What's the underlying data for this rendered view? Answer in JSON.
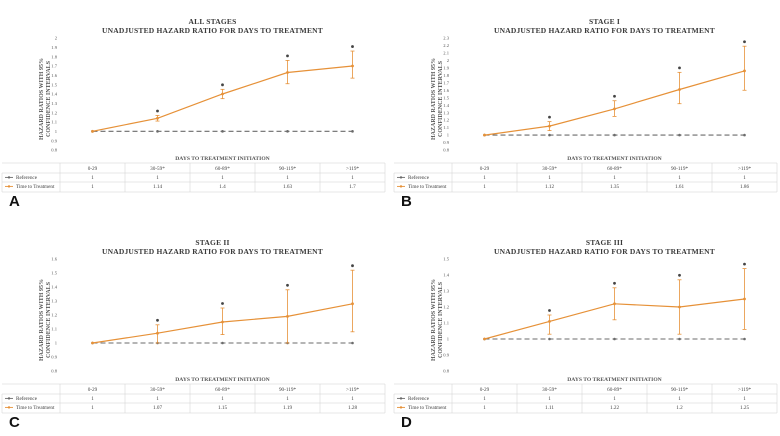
{
  "panels": [
    {
      "letter": "A",
      "title_line1": "ALL STAGES",
      "title_line2": "UNADJUSTED HAZARD RATIO FOR DAYS TO TREATMENT",
      "ylabel": "HAZARD RATIOS WITH 95% CONFIDENCE INTERVALS",
      "xlabel": "DAYS TO TREATMENT INITIATION"
    },
    {
      "letter": "B",
      "title_line1": "STAGE I",
      "title_line2": "UNADJUSTED HAZARD RATIO FOR DAYS TO TREATMENT",
      "ylabel": "HAZARD RATIOS WITH 95% CONFIDENCE INTERVALS",
      "xlabel": "DAYS TO TREATMENT INITIATION"
    },
    {
      "letter": "C",
      "title_line1": "STAGE II",
      "title_line2": "UNADJUSTED HAZARD RATIO FOR DAYS TO TREATMENT",
      "ylabel": "HAZARD RATIOS WITH 95% CONFIDENCE INTERVALS",
      "xlabel": "DAYS TO TREATMENT INITIATION"
    },
    {
      "letter": "D",
      "title_line1": "STAGE III",
      "title_line2": "UNADJUSTED HAZARD RATIO FOR DAYS TO TREATMENT",
      "ylabel": "HAZARD RATIOS WITH 95% CONFIDENCE INTERVALS",
      "xlabel": "DAYS TO TREATMENT INITIATION"
    }
  ],
  "colors": {
    "reference": "#6b6b6b",
    "time": "#e69138",
    "star": "#444444"
  },
  "chart_data": [
    {
      "type": "line",
      "title": "ALL STAGES UNADJUSTED HAZARD RATIO FOR DAYS TO TREATMENT",
      "xlabel": "DAYS TO TREATMENT INITIATION",
      "ylabel": "HAZARD RATIOS WITH 95% CONFIDENCE INTERVALS",
      "categories": [
        "0-29",
        "30-59*",
        "60-89*",
        "90-119*",
        ">119*"
      ],
      "ylim": [
        0.8,
        2
      ],
      "yticks": [
        "0.8",
        "0.9",
        "1",
        "1.1",
        "1.2",
        "1.3",
        "1.4",
        "1.5",
        "1.6",
        "1.7",
        "1.8",
        "1.9",
        "2"
      ],
      "series": [
        {
          "name": "Reference",
          "values": [
            1,
            1,
            1,
            1,
            1
          ],
          "values_text": [
            "1",
            "1",
            "1",
            "1",
            "1"
          ]
        },
        {
          "name": "Time to Treatment",
          "values": [
            1,
            1.14,
            1.4,
            1.63,
            1.7
          ],
          "values_text": [
            "1",
            "1.14",
            "1.4",
            "1.63",
            "1.7"
          ],
          "ci_low": [
            null,
            1.11,
            1.35,
            1.51,
            1.57
          ],
          "ci_high": [
            null,
            1.17,
            1.45,
            1.76,
            1.86
          ]
        }
      ],
      "significant": [
        false,
        true,
        true,
        true,
        true
      ],
      "legend": "table-below"
    },
    {
      "type": "line",
      "title": "STAGE I UNADJUSTED HAZARD RATIO FOR DAYS TO TREATMENT",
      "xlabel": "DAYS TO TREATMENT INITIATION",
      "ylabel": "HAZARD RATIOS WITH 95% CONFIDENCE INTERVALS",
      "categories": [
        "0-29",
        "30-59*",
        "60-89*",
        "90-119*",
        ">119*"
      ],
      "ylim": [
        0.8,
        2.3
      ],
      "yticks": [
        "0.8",
        "0.9",
        "1",
        "1.1",
        "1.2",
        "1.3",
        "1.4",
        "1.5",
        "1.6",
        "1.7",
        "1.8",
        "1.9",
        "2",
        "2.1",
        "2.2",
        "2.3"
      ],
      "series": [
        {
          "name": "Reference",
          "values": [
            1,
            1,
            1,
            1,
            1
          ],
          "values_text": [
            "1",
            "1",
            "1",
            "1",
            "1"
          ]
        },
        {
          "name": "Time to Treatment",
          "values": [
            1,
            1.12,
            1.35,
            1.61,
            1.86
          ],
          "values_text": [
            "1",
            "1.12",
            "1.35",
            "1.61",
            "1.86"
          ],
          "ci_low": [
            null,
            1.06,
            1.25,
            1.42,
            1.6
          ],
          "ci_high": [
            null,
            1.18,
            1.46,
            1.84,
            2.19
          ]
        }
      ],
      "significant": [
        false,
        true,
        true,
        true,
        true
      ],
      "legend": "table-below"
    },
    {
      "type": "line",
      "title": "STAGE II UNADJUSTED HAZARD RATIO FOR DAYS TO TREATMENT",
      "xlabel": "DAYS TO TREATMENT INITIATION",
      "ylabel": "HAZARD RATIOS WITH 95% CONFIDENCE INTERVALS",
      "categories": [
        "0-29",
        "30-59*",
        "60-89*",
        "90-119*",
        ">119*"
      ],
      "ylim": [
        0.8,
        1.6
      ],
      "yticks": [
        "0.8",
        "0.9",
        "1",
        "1.1",
        "1.2",
        "1.3",
        "1.4",
        "1.5",
        "1.6"
      ],
      "series": [
        {
          "name": "Reference",
          "values": [
            1,
            1,
            1,
            1,
            1
          ],
          "values_text": [
            "1",
            "1",
            "1",
            "1",
            "1"
          ]
        },
        {
          "name": "Time to Treatment",
          "values": [
            1,
            1.07,
            1.15,
            1.19,
            1.28
          ],
          "values_text": [
            "1",
            "1.07",
            "1.15",
            "1.19",
            "1.28"
          ],
          "ci_low": [
            null,
            1.0,
            1.06,
            1.0,
            1.08
          ],
          "ci_high": [
            null,
            1.13,
            1.25,
            1.38,
            1.52
          ]
        }
      ],
      "significant": [
        false,
        true,
        true,
        true,
        true
      ],
      "legend": "table-below"
    },
    {
      "type": "line",
      "title": "STAGE III UNADJUSTED HAZARD RATIO FOR DAYS TO TREATMENT",
      "xlabel": "DAYS TO TREATMENT INITIATION",
      "ylabel": "HAZARD RATIOS WITH 95% CONFIDENCE INTERVALS",
      "categories": [
        "0-29",
        "30-59*",
        "60-89*",
        "90-119*",
        ">119*"
      ],
      "ylim": [
        0.8,
        1.5
      ],
      "yticks": [
        "0.8",
        "0.9",
        "1",
        "1.1",
        "1.2",
        "1.3",
        "1.4",
        "1.5"
      ],
      "series": [
        {
          "name": "Reference",
          "values": [
            1,
            1,
            1,
            1,
            1
          ],
          "values_text": [
            "1",
            "1",
            "1",
            "1",
            "1"
          ]
        },
        {
          "name": "Time to Treatment",
          "values": [
            1,
            1.11,
            1.22,
            1.2,
            1.25
          ],
          "values_text": [
            "1",
            "1.11",
            "1.22",
            "1.2",
            "1.25"
          ],
          "ci_low": [
            null,
            1.03,
            1.12,
            1.03,
            1.06
          ],
          "ci_high": [
            null,
            1.15,
            1.32,
            1.37,
            1.44
          ]
        }
      ],
      "significant": [
        false,
        true,
        true,
        true,
        true
      ],
      "legend": "table-below"
    }
  ]
}
